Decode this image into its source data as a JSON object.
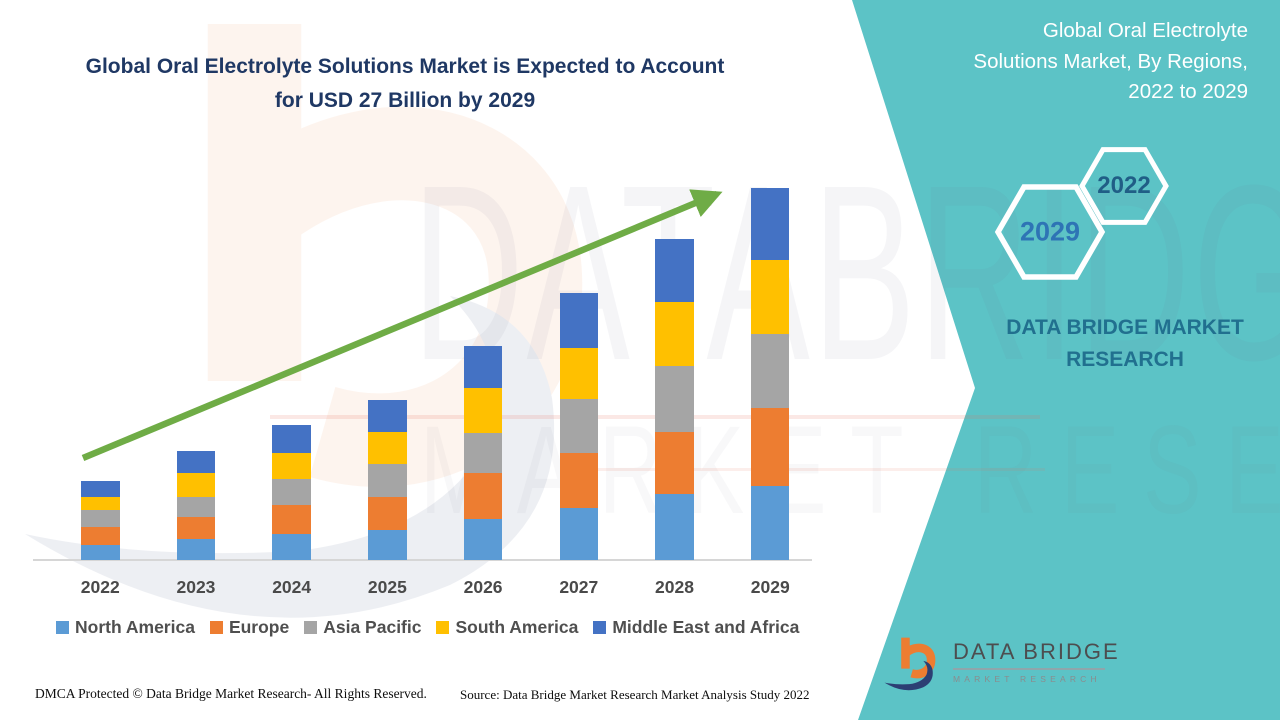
{
  "page": {
    "title_line1": "Global Oral Electrolyte Solutions Market is Expected to Account",
    "title_line2": "for USD 27 Billion by 2029"
  },
  "side_panel": {
    "heading_line1": "Global Oral Electrolyte",
    "heading_line2": "Solutions Market, By Regions,",
    "heading_line3": "2022 to 2029",
    "badge_back_year": "2029",
    "badge_front_year": "2022",
    "brand_line1": "DATA BRIDGE MARKET",
    "brand_line2": "RESEARCH",
    "teal_color": "#5CC3C6"
  },
  "watermark": {
    "line1": "DATABRIDGE",
    "line2": "MARKET RESEARCH"
  },
  "logo": {
    "name": "DATA BRIDGE",
    "subtitle": "MARKET RESEARCH"
  },
  "footer": {
    "left": "DMCA Protected © Data Bridge Market Research- All Rights Reserved.",
    "right": "Source: Data Bridge Market Research Market Analysis Study 2022"
  },
  "chart_data": {
    "type": "bar",
    "stacked": true,
    "title": "Global Oral Electrolyte Solutions Market is Expected to Account for USD 27 Billion by 2029",
    "unit": "USD Billion",
    "categories": [
      "2022",
      "2023",
      "2024",
      "2025",
      "2026",
      "2027",
      "2028",
      "2029"
    ],
    "series": [
      {
        "name": "North America",
        "color": "#5B9BD5",
        "values": [
          1.1,
          1.5,
          1.9,
          2.2,
          3.0,
          3.8,
          4.8,
          5.4
        ]
      },
      {
        "name": "Europe",
        "color": "#ED7D31",
        "values": [
          1.3,
          1.6,
          2.1,
          2.4,
          3.3,
          4.0,
          4.5,
          5.6
        ]
      },
      {
        "name": "Asia Pacific",
        "color": "#A5A5A5",
        "values": [
          1.2,
          1.5,
          1.9,
          2.4,
          2.9,
          3.9,
          4.8,
          5.4
        ]
      },
      {
        "name": "South America",
        "color": "#FFC000",
        "values": [
          1.0,
          1.7,
          1.9,
          2.3,
          3.3,
          3.7,
          4.6,
          5.4
        ]
      },
      {
        "name": "Middle East and Africa",
        "color": "#4472C4",
        "values": [
          1.1,
          1.6,
          2.0,
          2.3,
          3.0,
          4.0,
          4.6,
          5.2
        ]
      }
    ],
    "totals": [
      5.7,
      7.9,
      9.8,
      11.6,
      15.5,
      19.4,
      23.3,
      27.0
    ],
    "ylim": [
      0,
      28
    ],
    "x_axis_labels_only": true,
    "grid": false,
    "legend_position": "bottom",
    "trend_arrow": true,
    "trend_arrow_color": "#6FAC46"
  }
}
